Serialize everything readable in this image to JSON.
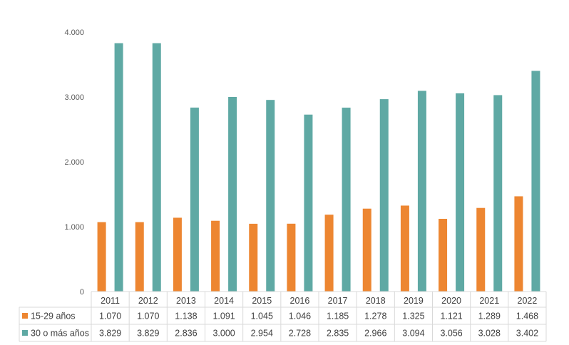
{
  "chart_data": {
    "type": "bar",
    "categories": [
      "2011",
      "2012",
      "2013",
      "2014",
      "2015",
      "2016",
      "2017",
      "2018",
      "2019",
      "2020",
      "2021",
      "2022"
    ],
    "series": [
      {
        "name": "15-29 años",
        "color": "#ed8631",
        "values": [
          1070,
          1070,
          1138,
          1091,
          1045,
          1046,
          1185,
          1278,
          1325,
          1121,
          1289,
          1468
        ],
        "labels": [
          "1.070",
          "1.070",
          "1.138",
          "1.091",
          "1.045",
          "1.046",
          "1.185",
          "1.278",
          "1.325",
          "1.121",
          "1.289",
          "1.468"
        ]
      },
      {
        "name": "30 o más años",
        "color": "#5fa9a4",
        "values": [
          3829,
          3829,
          2836,
          3000,
          2954,
          2728,
          2835,
          2966,
          3094,
          3056,
          3028,
          3402
        ],
        "labels": [
          "3.829",
          "3.829",
          "2.836",
          "3.000",
          "2.954",
          "2.728",
          "2.835",
          "2.966",
          "3.094",
          "3.056",
          "3.028",
          "3.402"
        ]
      }
    ],
    "ylim": [
      0,
      4000
    ],
    "yticks": [
      0,
      1000,
      2000,
      3000,
      4000
    ],
    "ytick_labels": [
      "0",
      "1.000",
      "2.000",
      "3.000",
      "4.000"
    ],
    "grid": false,
    "legend": "data-table-left"
  }
}
